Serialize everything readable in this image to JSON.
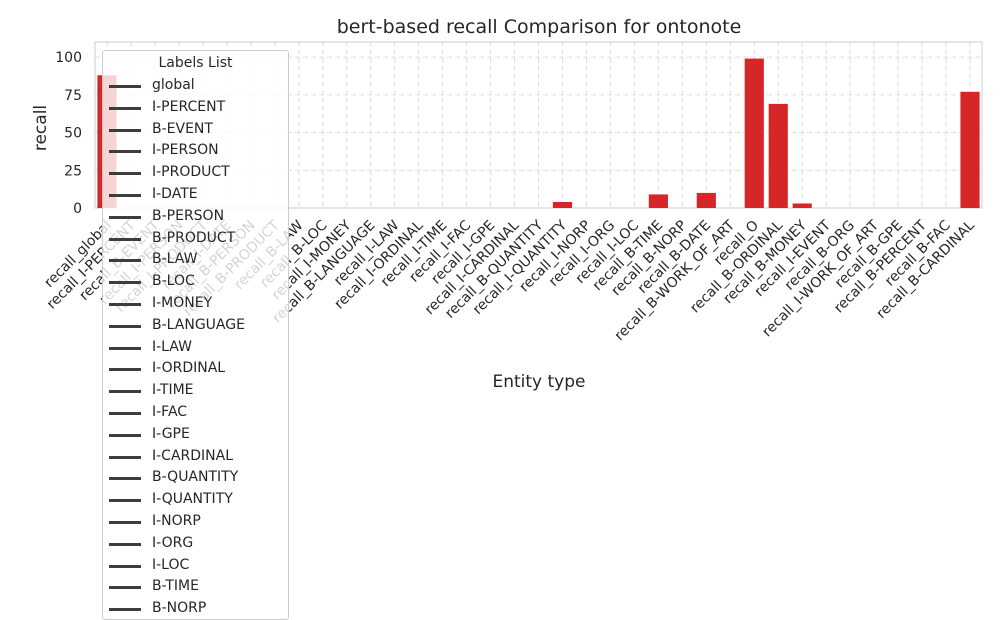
{
  "chart_data": {
    "type": "bar",
    "title": "bert-based  recall Comparison for ontonote",
    "xlabel": "Entity type",
    "ylabel": "recall",
    "ylim": [
      0,
      110
    ],
    "yticks": [
      0,
      25,
      50,
      75,
      100
    ],
    "grid": true,
    "bar_color": "#d62728",
    "categories": [
      "recall_global",
      "recall_I-PERCENT",
      "recall_B-EVENT",
      "recall_I-PERSON",
      "recall_I-PRODUCT",
      "recall_I-DATE",
      "recall_B-PERSON",
      "recall_B-PRODUCT",
      "recall_B-LAW",
      "recall_B-LOC",
      "recall_I-MONEY",
      "recall_B-LANGUAGE",
      "recall_I-LAW",
      "recall_I-ORDINAL",
      "recall_I-TIME",
      "recall_I-FAC",
      "recall_I-GPE",
      "recall_I-CARDINAL",
      "recall_B-QUANTITY",
      "recall_I-QUANTITY",
      "recall_I-NORP",
      "recall_I-ORG",
      "recall_I-LOC",
      "recall_B-TIME",
      "recall_B-NORP",
      "recall_B-DATE",
      "recall_B-WORK_OF_ART",
      "recall_O",
      "recall_B-ORDINAL",
      "recall_B-MONEY",
      "recall_I-EVENT",
      "recall_B-ORG",
      "recall_I-WORK_OF_ART",
      "recall_B-GPE",
      "recall_B-PERCENT",
      "recall_B-FAC",
      "recall_B-CARDINAL"
    ],
    "values": [
      88,
      0,
      0,
      0,
      0,
      0,
      0,
      0,
      0,
      0,
      0,
      0,
      0,
      0,
      0,
      0,
      0,
      0,
      0,
      4,
      0,
      0,
      0,
      9,
      0,
      10,
      0,
      99,
      69,
      3,
      0,
      0,
      0,
      0,
      0,
      0,
      77
    ],
    "legend": {
      "title": "Labels List",
      "placement": "upper-left",
      "entries": [
        "global",
        "I-PERCENT",
        "B-EVENT",
        "I-PERSON",
        "I-PRODUCT",
        "I-DATE",
        "B-PERSON",
        "B-PRODUCT",
        "B-LAW",
        "B-LOC",
        "I-MONEY",
        "B-LANGUAGE",
        "I-LAW",
        "I-ORDINAL",
        "I-TIME",
        "I-FAC",
        "I-GPE",
        "I-CARDINAL",
        "B-QUANTITY",
        "I-QUANTITY",
        "I-NORP",
        "I-ORG",
        "I-LOC",
        "B-TIME",
        "B-NORP"
      ]
    }
  }
}
